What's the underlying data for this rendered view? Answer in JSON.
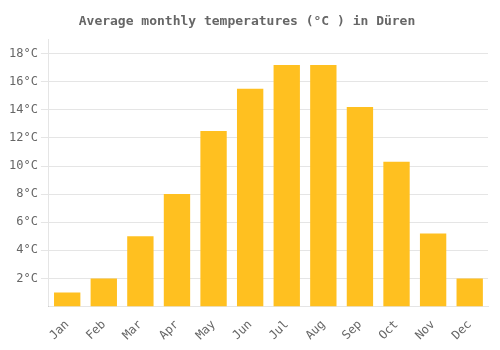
{
  "chart_data": {
    "type": "bar",
    "title": "Average monthly temperatures (°C ) in Düren",
    "categories": [
      "Jan",
      "Feb",
      "Mar",
      "Apr",
      "May",
      "Jun",
      "Jul",
      "Aug",
      "Sep",
      "Oct",
      "Nov",
      "Dec"
    ],
    "values": [
      1.0,
      2.0,
      5.0,
      8.0,
      12.5,
      15.5,
      17.2,
      17.2,
      14.2,
      10.3,
      5.2,
      2.0
    ],
    "color": "#FFC020",
    "ylim": [
      0,
      19
    ],
    "yticks": [
      {
        "value": 2,
        "label": "2°C"
      },
      {
        "value": 4,
        "label": "4°C"
      },
      {
        "value": 6,
        "label": "6°C"
      },
      {
        "value": 8,
        "label": "8°C"
      },
      {
        "value": 10,
        "label": "10°C"
      },
      {
        "value": 12,
        "label": "12°C"
      },
      {
        "value": 14,
        "label": "14°C"
      },
      {
        "value": 16,
        "label": "16°C"
      },
      {
        "value": 18,
        "label": "18°C"
      }
    ],
    "grid": true
  }
}
